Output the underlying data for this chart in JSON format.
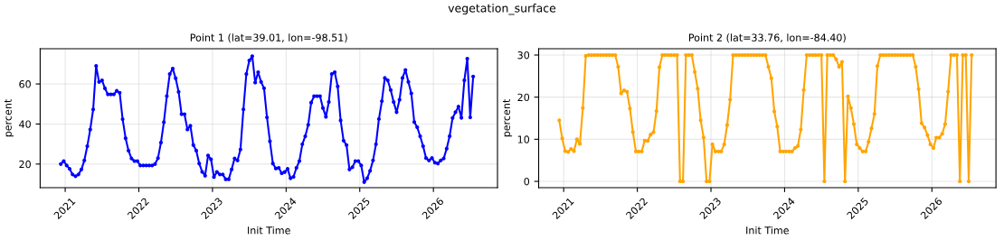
{
  "chart_data": [
    {
      "type": "line",
      "title": "Point 1 (lat=39.01, lon=-98.51)",
      "annotations": [
        "vegetation_surface"
      ],
      "xlabel": "Init Time",
      "ylabel": "percent",
      "x": [
        2020.94,
        2020.98,
        2021.02,
        2021.06,
        2021.1,
        2021.14,
        2021.18,
        2021.22,
        2021.26,
        2021.3,
        2021.34,
        2021.38,
        2021.42,
        2021.46,
        2021.5,
        2021.54,
        2021.58,
        2021.62,
        2021.66,
        2021.7,
        2021.74,
        2021.78,
        2021.82,
        2021.86,
        2021.9,
        2021.94,
        2021.98,
        2022.02,
        2022.06,
        2022.1,
        2022.14,
        2022.18,
        2022.22,
        2022.26,
        2022.3,
        2022.34,
        2022.38,
        2022.42,
        2022.46,
        2022.5,
        2022.54,
        2022.58,
        2022.62,
        2022.66,
        2022.7,
        2022.74,
        2022.78,
        2022.82,
        2022.86,
        2022.9,
        2022.94,
        2022.98,
        2023.02,
        2023.06,
        2023.1,
        2023.14,
        2023.18,
        2023.22,
        2023.26,
        2023.3,
        2023.34,
        2023.38,
        2023.42,
        2023.46,
        2023.5,
        2023.54,
        2023.58,
        2023.62,
        2023.66,
        2023.7,
        2023.74,
        2023.78,
        2023.82,
        2023.86,
        2023.9,
        2023.94,
        2023.98,
        2024.02,
        2024.06,
        2024.1,
        2024.14,
        2024.18,
        2024.22,
        2024.26,
        2024.3,
        2024.34,
        2024.38,
        2024.42,
        2024.46,
        2024.5,
        2024.54,
        2024.58,
        2024.62,
        2024.66,
        2024.7,
        2024.74,
        2024.78,
        2024.82,
        2024.86,
        2024.9,
        2024.94,
        2024.98,
        2025.02,
        2025.06,
        2025.1,
        2025.14,
        2025.18,
        2025.22,
        2025.26,
        2025.3,
        2025.34,
        2025.38,
        2025.42,
        2025.46,
        2025.5,
        2025.54,
        2025.58,
        2025.62,
        2025.66,
        2025.7,
        2025.74,
        2025.78,
        2025.82,
        2025.86,
        2025.9,
        2025.94,
        2025.98,
        2026.02,
        2026.06,
        2026.1,
        2026.14,
        2026.18,
        2026.22,
        2026.26,
        2026.3,
        2026.34,
        2026.38,
        2026.42,
        2026.46,
        2026.5,
        2026.54
      ],
      "series": [
        {
          "color": "#0000ff",
          "values": [
            20.0,
            21.5,
            19.3,
            17.6,
            14.8,
            13.9,
            14.8,
            17.3,
            21.8,
            28.9,
            37.3,
            47.3,
            69.0,
            61.0,
            61.8,
            57.8,
            54.8,
            54.8,
            54.8,
            56.6,
            55.6,
            42.4,
            32.9,
            26.7,
            22.8,
            21.5,
            21.5,
            19.3,
            19.3,
            19.3,
            19.3,
            19.3,
            20.0,
            23.0,
            30.7,
            40.9,
            53.9,
            65.0,
            67.7,
            62.8,
            56.1,
            44.9,
            44.9,
            37.3,
            39.1,
            29.5,
            26.7,
            20.3,
            16.1,
            14.2,
            24.3,
            22.4,
            13.5,
            16.1,
            14.8,
            14.8,
            12.4,
            12.4,
            17.3,
            22.8,
            21.8,
            27.3,
            47.3,
            65.0,
            71.7,
            73.9,
            60.7,
            65.9,
            61.0,
            57.9,
            43.3,
            31.4,
            20.3,
            17.8,
            18.1,
            15.4,
            16.0,
            17.6,
            12.9,
            13.6,
            18.1,
            21.5,
            29.9,
            33.9,
            39.6,
            50.7,
            53.9,
            53.9,
            53.9,
            48.0,
            43.6,
            51.0,
            65.0,
            65.9,
            58.8,
            41.8,
            31.7,
            29.5,
            17.3,
            18.4,
            21.5,
            21.5,
            19.3,
            11.0,
            12.9,
            16.6,
            21.8,
            29.9,
            42.5,
            51.4,
            63.0,
            61.8,
            57.0,
            51.0,
            45.9,
            52.1,
            63.0,
            67.0,
            61.0,
            55.3,
            41.0,
            38.4,
            33.9,
            28.9,
            23.0,
            21.8,
            23.0,
            20.7,
            20.3,
            21.8,
            22.8,
            27.7,
            33.9,
            43.0,
            45.9,
            48.7,
            43.1,
            61.8,
            72.6,
            43.3,
            63.7
          ]
        }
      ],
      "xlim": [
        2020.66,
        2026.87
      ],
      "xticks": [
        2021,
        2022,
        2023,
        2024,
        2025,
        2026
      ],
      "ylim": [
        8.2,
        77.6
      ],
      "yticks": [
        20,
        40,
        60
      ],
      "grid": true,
      "marker": "circle",
      "line_style": "solid"
    },
    {
      "type": "line",
      "title": "Point 2 (lat=33.76, lon=-84.40)",
      "xlabel": "Init Time",
      "ylabel": "percent",
      "x": [
        2020.94,
        2020.98,
        2021.02,
        2021.06,
        2021.1,
        2021.14,
        2021.18,
        2021.22,
        2021.26,
        2021.3,
        2021.34,
        2021.38,
        2021.42,
        2021.46,
        2021.5,
        2021.54,
        2021.58,
        2021.62,
        2021.66,
        2021.7,
        2021.74,
        2021.78,
        2021.82,
        2021.86,
        2021.9,
        2021.94,
        2021.98,
        2022.02,
        2022.06,
        2022.1,
        2022.14,
        2022.18,
        2022.22,
        2022.26,
        2022.3,
        2022.34,
        2022.38,
        2022.42,
        2022.46,
        2022.5,
        2022.54,
        2022.58,
        2022.62,
        2022.66,
        2022.7,
        2022.74,
        2022.78,
        2022.82,
        2022.86,
        2022.9,
        2022.94,
        2022.98,
        2023.02,
        2023.06,
        2023.1,
        2023.14,
        2023.18,
        2023.22,
        2023.26,
        2023.3,
        2023.34,
        2023.38,
        2023.42,
        2023.46,
        2023.5,
        2023.54,
        2023.58,
        2023.62,
        2023.66,
        2023.7,
        2023.74,
        2023.78,
        2023.82,
        2023.86,
        2023.9,
        2023.94,
        2023.98,
        2024.02,
        2024.06,
        2024.1,
        2024.14,
        2024.18,
        2024.22,
        2024.26,
        2024.3,
        2024.34,
        2024.38,
        2024.42,
        2024.46,
        2024.5,
        2024.54,
        2024.58,
        2024.62,
        2024.66,
        2024.7,
        2024.74,
        2024.78,
        2024.82,
        2024.86,
        2024.9,
        2024.94,
        2024.98,
        2025.02,
        2025.06,
        2025.1,
        2025.14,
        2025.18,
        2025.22,
        2025.26,
        2025.3,
        2025.34,
        2025.38,
        2025.42,
        2025.46,
        2025.5,
        2025.54,
        2025.58,
        2025.62,
        2025.66,
        2025.7,
        2025.74,
        2025.78,
        2025.82,
        2025.86,
        2025.9,
        2025.94,
        2025.98,
        2026.02,
        2026.06,
        2026.1,
        2026.14,
        2026.18,
        2026.22,
        2026.26,
        2026.3,
        2026.34,
        2026.38,
        2026.42,
        2026.46,
        2026.5,
        2026.54
      ],
      "series": [
        {
          "color": "#ffa500",
          "values": [
            14.5,
            10.2,
            7.2,
            7.0,
            7.7,
            7.2,
            10.0,
            8.9,
            17.4,
            29.8,
            30,
            30,
            30,
            30,
            30,
            30,
            30,
            30,
            30,
            30,
            27.2,
            20.9,
            21.6,
            21.3,
            17.3,
            11.7,
            7.1,
            7.1,
            7.1,
            9.7,
            9.6,
            11.1,
            11.7,
            16.7,
            27.1,
            30,
            30,
            30,
            30,
            30,
            30,
            0,
            0,
            30,
            30,
            30,
            26.0,
            22.0,
            14.5,
            10.4,
            0,
            0,
            8.8,
            7.1,
            7.1,
            7.1,
            8.8,
            13.4,
            19.4,
            30,
            30,
            30,
            30,
            30,
            30,
            30,
            30,
            30,
            30,
            30,
            30,
            27.2,
            24.5,
            16.6,
            13.0,
            7.1,
            7.1,
            7.1,
            7.1,
            7.1,
            7.9,
            8.4,
            12.3,
            21.7,
            30,
            30,
            30,
            30,
            30,
            30,
            0,
            30,
            30,
            30,
            29.0,
            27.2,
            28.4,
            0,
            20.2,
            17.4,
            13.6,
            8.8,
            7.9,
            7.1,
            7.1,
            9.4,
            12.6,
            16.0,
            27.4,
            30,
            30,
            30,
            30,
            30,
            30,
            30,
            30,
            30,
            30,
            30,
            30,
            27.2,
            21.9,
            13.8,
            12.8,
            11.0,
            8.8,
            7.9,
            10.4,
            10.4,
            11.3,
            13.6,
            21.3,
            30,
            30,
            30,
            0,
            30,
            30,
            0,
            30
          ]
        }
      ],
      "xlim": [
        2020.66,
        2026.87
      ],
      "xticks": [
        2021,
        2022,
        2023,
        2024,
        2025,
        2026
      ],
      "ylim": [
        -1.5,
        31.5
      ],
      "yticks": [
        0,
        10,
        20,
        30
      ],
      "grid": true,
      "marker": "circle",
      "line_style": "solid"
    }
  ]
}
